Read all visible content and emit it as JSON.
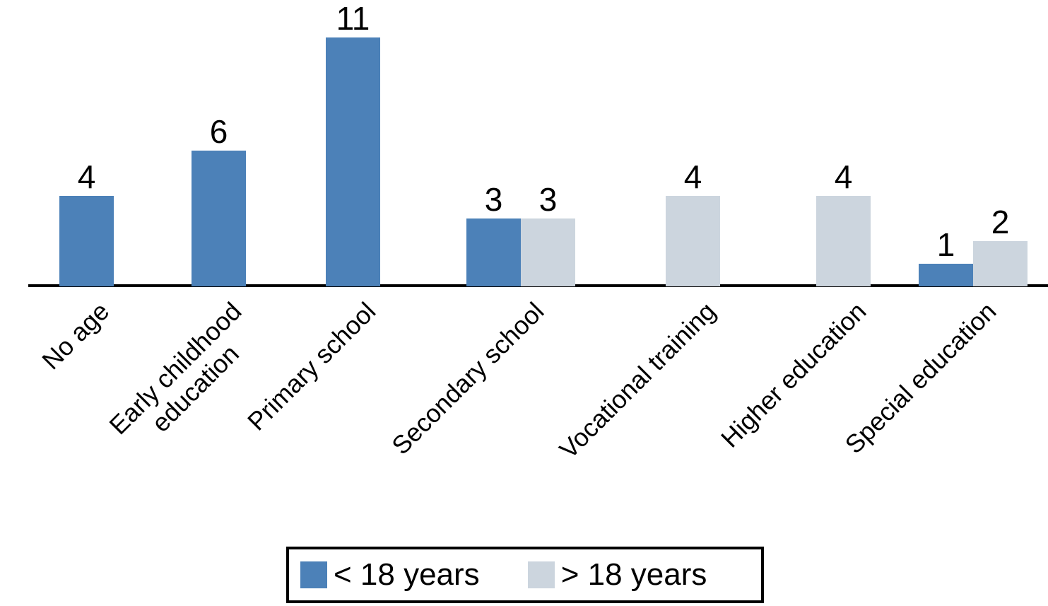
{
  "chart_data": {
    "type": "bar",
    "categories": [
      [
        "No age"
      ],
      [
        "Early childhood",
        "education"
      ],
      [
        "Primary school"
      ],
      [
        "Secondary school"
      ],
      [
        "Vocational training"
      ],
      [
        "Higher education"
      ],
      [
        "Special education"
      ]
    ],
    "series": [
      {
        "name": "< 18 years",
        "color": "#4C81B8",
        "values": [
          4,
          6,
          11,
          3,
          null,
          null,
          1
        ]
      },
      {
        "name": "> 18 years",
        "color": "#CCD5DE",
        "values": [
          null,
          null,
          null,
          3,
          4,
          4,
          2
        ]
      }
    ],
    "title": "",
    "xlabel": "",
    "ylabel": "",
    "ylim": [
      0,
      11.5
    ],
    "grid": false,
    "bar_value_labels": true,
    "legend_position": "bottom",
    "axis_color": "#000000",
    "background_color": "#FFFFFF",
    "label_rotation_deg": 45
  }
}
